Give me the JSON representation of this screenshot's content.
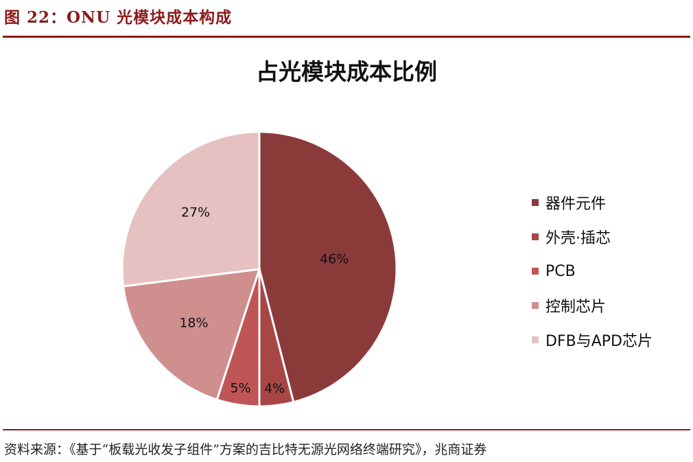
{
  "figure": {
    "header": "图 22：ONU 光模块成本构成",
    "source": "资料来源：《基于“板载光收发子组件”方案的吉比特无源光网络终端研究》，兆商证券"
  },
  "chart_data": {
    "type": "pie",
    "title": "占光模块成本比例",
    "categories": [
      "器件元件",
      "外壳·插芯",
      "PCB",
      "控制芯片",
      "DFB与APD芯片"
    ],
    "values": [
      46,
      4,
      5,
      18,
      27
    ],
    "labels": [
      "46%",
      "4%",
      "5%",
      "18%",
      "27%"
    ],
    "colors": [
      "#8b3a3a",
      "#a84646",
      "#c05555",
      "#cf8f8f",
      "#e6c1c1"
    ],
    "start_angle": "12 o'clock",
    "direction": "clockwise",
    "legend_position": "right"
  }
}
